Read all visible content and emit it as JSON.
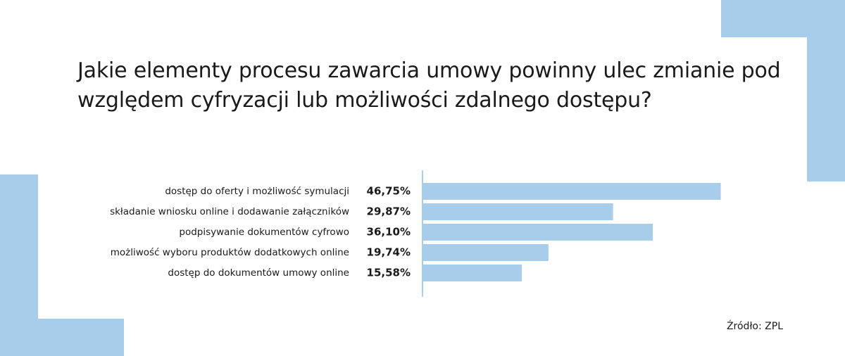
{
  "title": "Jakie elementy procesu zawarcia umowy powinny ulec zmianie pod względem cyfryzacji lub możliwości zdalnego dostępu?",
  "source": "Źródło: ZPL",
  "colors": {
    "bar": "#a8cdea",
    "decoration": "#a8cdea",
    "axis": "#a8cdea",
    "text": "#1a1a1a"
  },
  "chart_data": {
    "type": "bar",
    "orientation": "horizontal",
    "title": "Jakie elementy procesu zawarcia umowy powinny ulec zmianie pod względem cyfryzacji lub możliwości zdalnego dostępu?",
    "categories": [
      "dostęp do oferty i możliwość symulacji",
      "składanie wniosku online i dodawanie załączników",
      "podpisywanie dokumentów cyfrowo",
      "możliwość wyboru produktów dodatkowych online",
      "dostęp do dokumentów umowy online"
    ],
    "values": [
      46.75,
      29.87,
      36.1,
      19.74,
      15.58
    ],
    "value_labels": [
      "46,75%",
      "29,87%",
      "36,10%",
      "19,74%",
      "15,58%"
    ],
    "xlim": [
      0,
      50
    ],
    "grid": false,
    "legend": "none"
  }
}
